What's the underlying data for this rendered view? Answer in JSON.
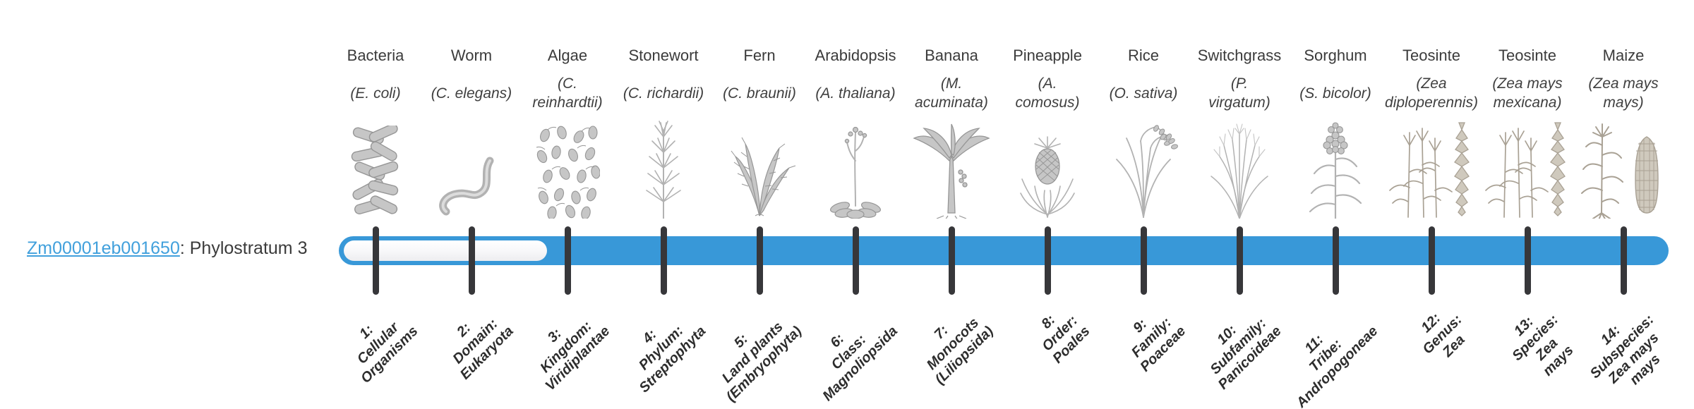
{
  "gene": {
    "id_link": "Zm00001eb001650",
    "phylostratum_text": ": Phylostratum 3",
    "phylostratum": 3
  },
  "timeline": {
    "fill_color": "#3898d8",
    "track_color": "#f4f4f6",
    "tick_color": "#37373a",
    "link_color": "#41a0dc",
    "total_strata": 14,
    "filled_from_stratum": 3
  },
  "columns": [
    {
      "common": "Bacteria",
      "sci_lines": [
        "(E. coli)"
      ],
      "icon": "bacteria-illustration",
      "stratum_lines": [
        "1:",
        "Cellular",
        "Organisms"
      ]
    },
    {
      "common": "Worm",
      "sci_lines": [
        "(C. elegans)"
      ],
      "icon": "worm-illustration",
      "stratum_lines": [
        "2:",
        "Domain:",
        "Eukaryota"
      ]
    },
    {
      "common": "Algae",
      "sci_lines": [
        "(C.",
        "reinhardtii)"
      ],
      "icon": "algae-illustration",
      "stratum_lines": [
        "3:",
        "Kingdom:",
        "Viridiplantae"
      ]
    },
    {
      "common": "Stonewort",
      "sci_lines": [
        "(C. richardii)"
      ],
      "icon": "stonewort-illustration",
      "stratum_lines": [
        "4:",
        "Phylum:",
        "Streptophyta"
      ]
    },
    {
      "common": "Fern",
      "sci_lines": [
        "(C. braunii)"
      ],
      "icon": "fern-illustration",
      "stratum_lines": [
        "5:",
        "Land plants",
        "(Embryophyta)"
      ]
    },
    {
      "common": "Arabidopsis",
      "sci_lines": [
        "(A. thaliana)"
      ],
      "icon": "arabidopsis-illustration",
      "stratum_lines": [
        "6:",
        "Class:",
        "Magnoliopsida"
      ]
    },
    {
      "common": "Banana",
      "sci_lines": [
        "(M.",
        "acuminata)"
      ],
      "icon": "banana-illustration",
      "stratum_lines": [
        "7:",
        "Monocots",
        "(Liliopsida)"
      ]
    },
    {
      "common": "Pineapple",
      "sci_lines": [
        "(A.",
        "comosus)"
      ],
      "icon": "pineapple-illustration",
      "stratum_lines": [
        "8:",
        "Order:",
        "Poales"
      ]
    },
    {
      "common": "Rice",
      "sci_lines": [
        "(O. sativa)"
      ],
      "icon": "rice-illustration",
      "stratum_lines": [
        "9:",
        "Family:",
        "Poaceae"
      ]
    },
    {
      "common": "Switchgrass",
      "sci_lines": [
        "(P.",
        "virgatum)"
      ],
      "icon": "switchgrass-illustration",
      "stratum_lines": [
        "10:",
        "Subfamily:",
        "Panicoideae"
      ]
    },
    {
      "common": "Sorghum",
      "sci_lines": [
        "(S. bicolor)"
      ],
      "icon": "sorghum-illustration",
      "stratum_lines": [
        "11:",
        "Tribe:",
        "Andropogoneae"
      ]
    },
    {
      "common": "Teosinte",
      "sci_lines": [
        "(Zea",
        "diploperennis)"
      ],
      "icon": "teosinte-illustration",
      "stratum_lines": [
        "12:",
        "Genus:",
        "Zea"
      ]
    },
    {
      "common": "Teosinte",
      "sci_lines": [
        "(Zea mays",
        "mexicana)"
      ],
      "icon": "teosinte-illustration",
      "stratum_lines": [
        "13:",
        "Species:",
        "Zea",
        "mays"
      ]
    },
    {
      "common": "Maize",
      "sci_lines": [
        "(Zea mays",
        "mays)"
      ],
      "icon": "maize-illustration",
      "stratum_lines": [
        "14:",
        "Subspecies:",
        "Zea mays",
        "mays"
      ]
    }
  ]
}
